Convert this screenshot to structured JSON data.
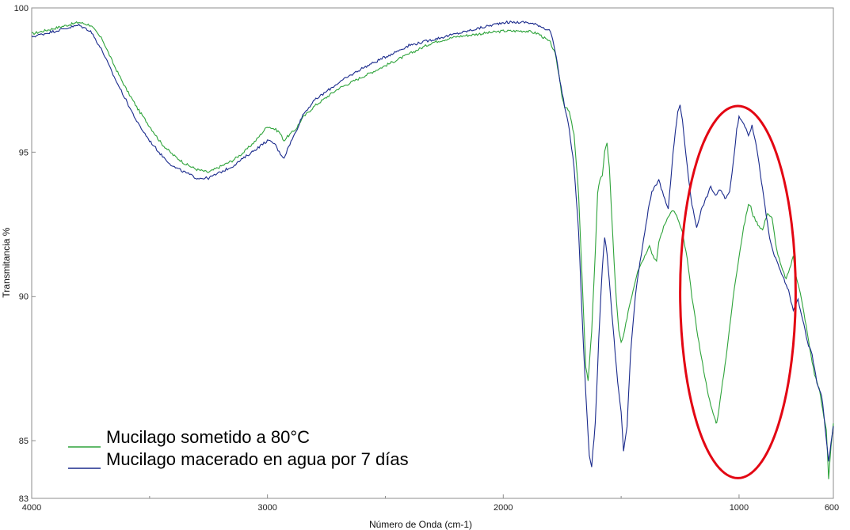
{
  "chart_data": {
    "type": "line",
    "title": "",
    "xlabel": "Número de Onda (cm-1)",
    "ylabel": "Transmitancia %",
    "xlim": [
      4000,
      600
    ],
    "ylim": [
      83,
      100
    ],
    "x_ticks": [
      "4000",
      "3000",
      "2000",
      "1000",
      "600"
    ],
    "x_tick_values": [
      4000,
      3000,
      2000,
      1000,
      600
    ],
    "y_ticks": [
      "100",
      "95",
      "90",
      "85",
      "83"
    ],
    "y_tick_values": [
      100,
      95,
      90,
      85,
      83
    ],
    "legend_position": "bottom-left",
    "grid": false,
    "highlight_ellipse": {
      "center_x": 1005,
      "center_y": 90.15,
      "radius_x": 245,
      "radius_y": 6.45,
      "color": "#e30613"
    },
    "series": [
      {
        "name": "Mucilago sometido a 80°C",
        "color": "#2ea33a",
        "points": [
          [
            4000,
            99.1
          ],
          [
            3900,
            99.3
          ],
          [
            3850,
            99.4
          ],
          [
            3800,
            99.5
          ],
          [
            3750,
            99.4
          ],
          [
            3700,
            98.9
          ],
          [
            3650,
            98.0
          ],
          [
            3600,
            97.2
          ],
          [
            3550,
            96.5
          ],
          [
            3500,
            95.9
          ],
          [
            3450,
            95.3
          ],
          [
            3400,
            94.9
          ],
          [
            3350,
            94.6
          ],
          [
            3300,
            94.4
          ],
          [
            3250,
            94.3
          ],
          [
            3200,
            94.5
          ],
          [
            3150,
            94.7
          ],
          [
            3100,
            95.0
          ],
          [
            3050,
            95.4
          ],
          [
            3000,
            95.9
          ],
          [
            2970,
            95.8
          ],
          [
            2950,
            95.7
          ],
          [
            2930,
            95.4
          ],
          [
            2920,
            95.5
          ],
          [
            2880,
            95.8
          ],
          [
            2850,
            96.2
          ],
          [
            2800,
            96.6
          ],
          [
            2700,
            97.2
          ],
          [
            2600,
            97.6
          ],
          [
            2500,
            98.0
          ],
          [
            2400,
            98.4
          ],
          [
            2300,
            98.8
          ],
          [
            2200,
            99.0
          ],
          [
            2100,
            99.1
          ],
          [
            2000,
            99.2
          ],
          [
            1900,
            99.2
          ],
          [
            1850,
            99.1
          ],
          [
            1800,
            98.8
          ],
          [
            1780,
            98.4
          ],
          [
            1760,
            97.5
          ],
          [
            1750,
            96.9
          ],
          [
            1740,
            96.6
          ],
          [
            1720,
            96.4
          ],
          [
            1700,
            95.6
          ],
          [
            1680,
            93.5
          ],
          [
            1665,
            90.5
          ],
          [
            1650,
            87.5
          ],
          [
            1640,
            87.1
          ],
          [
            1625,
            88.8
          ],
          [
            1610,
            91.5
          ],
          [
            1600,
            93.6
          ],
          [
            1590,
            94.0
          ],
          [
            1580,
            94.2
          ],
          [
            1570,
            95.0
          ],
          [
            1560,
            95.3
          ],
          [
            1550,
            94.5
          ],
          [
            1540,
            92.8
          ],
          [
            1530,
            91.2
          ],
          [
            1520,
            89.8
          ],
          [
            1510,
            88.8
          ],
          [
            1500,
            88.4
          ],
          [
            1490,
            88.6
          ],
          [
            1470,
            89.5
          ],
          [
            1450,
            90.2
          ],
          [
            1430,
            90.9
          ],
          [
            1400,
            91.4
          ],
          [
            1380,
            91.8
          ],
          [
            1370,
            91.5
          ],
          [
            1350,
            91.2
          ],
          [
            1340,
            91.9
          ],
          [
            1320,
            92.4
          ],
          [
            1300,
            92.8
          ],
          [
            1280,
            93.0
          ],
          [
            1260,
            92.7
          ],
          [
            1240,
            92.2
          ],
          [
            1220,
            91.3
          ],
          [
            1200,
            90.0
          ],
          [
            1180,
            88.9
          ],
          [
            1160,
            87.9
          ],
          [
            1140,
            87.0
          ],
          [
            1120,
            86.2
          ],
          [
            1100,
            85.7
          ],
          [
            1095,
            85.6
          ],
          [
            1080,
            86.4
          ],
          [
            1060,
            87.6
          ],
          [
            1040,
            88.9
          ],
          [
            1020,
            90.3
          ],
          [
            1000,
            91.4
          ],
          [
            980,
            92.4
          ],
          [
            960,
            93.2
          ],
          [
            950,
            93.1
          ],
          [
            940,
            92.8
          ],
          [
            920,
            92.5
          ],
          [
            900,
            92.3
          ],
          [
            880,
            92.9
          ],
          [
            860,
            92.7
          ],
          [
            840,
            91.6
          ],
          [
            820,
            91.0
          ],
          [
            800,
            90.6
          ],
          [
            780,
            91.1
          ],
          [
            770,
            91.4
          ],
          [
            760,
            90.8
          ],
          [
            740,
            90.1
          ],
          [
            720,
            89.2
          ],
          [
            700,
            88.2
          ],
          [
            680,
            87.3
          ],
          [
            660,
            86.8
          ],
          [
            640,
            85.8
          ],
          [
            630,
            85.4
          ],
          [
            620,
            83.7
          ],
          [
            610,
            84.8
          ],
          [
            600,
            85.6
          ]
        ]
      },
      {
        "name": "Mucilago macerado en agua por 7 días",
        "color": "#1a2a8c",
        "points": [
          [
            4000,
            99.0
          ],
          [
            3900,
            99.2
          ],
          [
            3850,
            99.3
          ],
          [
            3800,
            99.4
          ],
          [
            3750,
            99.2
          ],
          [
            3700,
            98.5
          ],
          [
            3650,
            97.6
          ],
          [
            3600,
            96.8
          ],
          [
            3550,
            96.0
          ],
          [
            3500,
            95.4
          ],
          [
            3450,
            94.9
          ],
          [
            3400,
            94.5
          ],
          [
            3350,
            94.3
          ],
          [
            3300,
            94.1
          ],
          [
            3250,
            94.1
          ],
          [
            3200,
            94.3
          ],
          [
            3150,
            94.5
          ],
          [
            3100,
            94.8
          ],
          [
            3050,
            95.1
          ],
          [
            3000,
            95.4
          ],
          [
            2970,
            95.3
          ],
          [
            2950,
            95.0
          ],
          [
            2930,
            94.8
          ],
          [
            2910,
            95.2
          ],
          [
            2880,
            95.7
          ],
          [
            2850,
            96.3
          ],
          [
            2800,
            96.8
          ],
          [
            2700,
            97.4
          ],
          [
            2600,
            97.9
          ],
          [
            2500,
            98.3
          ],
          [
            2400,
            98.7
          ],
          [
            2300,
            98.9
          ],
          [
            2200,
            99.1
          ],
          [
            2100,
            99.3
          ],
          [
            2000,
            99.5
          ],
          [
            1950,
            99.5
          ],
          [
            1900,
            99.5
          ],
          [
            1850,
            99.4
          ],
          [
            1800,
            99.2
          ],
          [
            1780,
            98.5
          ],
          [
            1760,
            97.5
          ],
          [
            1740,
            96.6
          ],
          [
            1720,
            95.8
          ],
          [
            1700,
            94.5
          ],
          [
            1680,
            92.2
          ],
          [
            1665,
            89.2
          ],
          [
            1650,
            86.6
          ],
          [
            1635,
            84.5
          ],
          [
            1625,
            84.1
          ],
          [
            1610,
            85.6
          ],
          [
            1595,
            88.5
          ],
          [
            1580,
            91.0
          ],
          [
            1570,
            92.0
          ],
          [
            1560,
            91.5
          ],
          [
            1545,
            90.0
          ],
          [
            1530,
            88.5
          ],
          [
            1515,
            87.0
          ],
          [
            1500,
            86.0
          ],
          [
            1490,
            84.6
          ],
          [
            1475,
            85.5
          ],
          [
            1460,
            88.0
          ],
          [
            1440,
            90.0
          ],
          [
            1420,
            91.2
          ],
          [
            1400,
            92.2
          ],
          [
            1385,
            93.0
          ],
          [
            1370,
            93.6
          ],
          [
            1360,
            93.8
          ],
          [
            1340,
            94.0
          ],
          [
            1320,
            93.5
          ],
          [
            1300,
            93.0
          ],
          [
            1280,
            95.0
          ],
          [
            1260,
            96.4
          ],
          [
            1250,
            96.6
          ],
          [
            1240,
            96.1
          ],
          [
            1220,
            94.5
          ],
          [
            1200,
            93.2
          ],
          [
            1180,
            92.4
          ],
          [
            1160,
            93.0
          ],
          [
            1140,
            93.4
          ],
          [
            1120,
            93.8
          ],
          [
            1100,
            93.5
          ],
          [
            1080,
            93.7
          ],
          [
            1060,
            93.4
          ],
          [
            1040,
            93.6
          ],
          [
            1020,
            95.0
          ],
          [
            1010,
            95.8
          ],
          [
            1000,
            96.2
          ],
          [
            980,
            96.0
          ],
          [
            960,
            95.6
          ],
          [
            945,
            95.9
          ],
          [
            930,
            95.4
          ],
          [
            910,
            94.3
          ],
          [
            890,
            93.1
          ],
          [
            870,
            92.0
          ],
          [
            850,
            91.4
          ],
          [
            830,
            91.0
          ],
          [
            810,
            90.6
          ],
          [
            790,
            90.2
          ],
          [
            770,
            89.5
          ],
          [
            750,
            89.9
          ],
          [
            730,
            89.2
          ],
          [
            710,
            88.4
          ],
          [
            690,
            88.0
          ],
          [
            670,
            87.0
          ],
          [
            650,
            86.6
          ],
          [
            640,
            85.9
          ],
          [
            630,
            85.0
          ],
          [
            620,
            84.3
          ],
          [
            610,
            84.9
          ],
          [
            600,
            85.5
          ]
        ]
      }
    ]
  }
}
